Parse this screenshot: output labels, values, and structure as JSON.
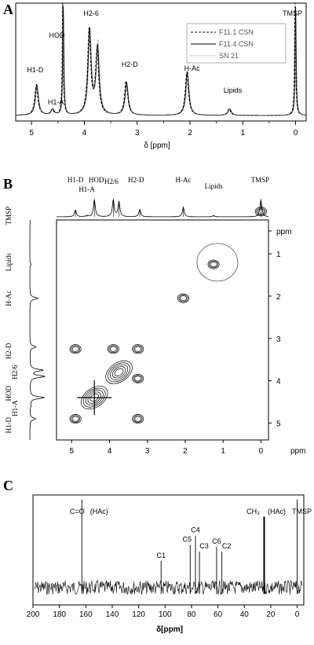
{
  "chart_data": [
    {
      "panel": "A",
      "type": "line",
      "xlabel": "δ [ppm]",
      "xlim": [
        5.3,
        -0.2
      ],
      "xticks": [
        "5",
        "4",
        "3",
        "2",
        "1",
        "0"
      ],
      "legend": {
        "placement": "top-right",
        "entries": [
          "F11.1 CSN",
          "F11.4 CSN",
          "SN 21"
        ]
      },
      "peaks": [
        {
          "label": "H1-D",
          "ppm": 4.9,
          "height": 0.28
        },
        {
          "label": "H1-A",
          "ppm": 4.6,
          "height": 0.05
        },
        {
          "label": "HOD",
          "ppm": 4.4,
          "height": 1.0
        },
        {
          "label": "H2-6",
          "ppm": 3.9,
          "height": 0.78
        },
        {
          "label": "",
          "ppm": 3.75,
          "height": 0.62
        },
        {
          "label": "H2-D",
          "ppm": 3.2,
          "height": 0.3
        },
        {
          "label": "H-Ac",
          "ppm": 2.05,
          "height": 0.4
        },
        {
          "label": "Lipids",
          "ppm": 1.25,
          "height": 0.06
        },
        {
          "label": "TMSP",
          "ppm": 0.0,
          "height": 1.0
        }
      ]
    },
    {
      "panel": "B",
      "type": "heatmap",
      "subtype": "2D NMR contour",
      "xlabel": "ppm",
      "ylabel": "ppm",
      "xlim": [
        5.4,
        -0.2
      ],
      "ylim": [
        0.2,
        5.4
      ],
      "xticks": [
        "5",
        "4",
        "3",
        "2",
        "1",
        "0"
      ],
      "yticks": [
        "ppm",
        "1",
        "2",
        "3",
        "4",
        "5"
      ],
      "top_labels": [
        "H1-D",
        "H1-A",
        "HOD",
        "H2/6",
        "H2-D",
        "H-Ac",
        "Lipids",
        "TMSP"
      ],
      "side_labels": [
        "TMSP",
        "Lipids",
        "H-Ac",
        "H2-D",
        "H2/6",
        "HOD",
        "H1-A",
        "H1-D"
      ],
      "cross_peaks": [
        {
          "x": 0.0,
          "y": 0.0
        },
        {
          "x": 1.25,
          "y": 1.25
        },
        {
          "x": 2.05,
          "y": 2.05
        },
        {
          "x": 4.9,
          "y": 3.25
        },
        {
          "x": 3.25,
          "y": 3.25
        },
        {
          "x": 3.9,
          "y": 3.25
        },
        {
          "x": 3.75,
          "y": 3.8
        },
        {
          "x": 3.25,
          "y": 3.95
        },
        {
          "x": 4.4,
          "y": 4.4
        },
        {
          "x": 4.9,
          "y": 4.9
        },
        {
          "x": 3.25,
          "y": 4.9
        }
      ]
    },
    {
      "panel": "C",
      "type": "line",
      "xlabel": "δ[ppm]",
      "xlim": [
        200,
        -5
      ],
      "xticks": [
        "200",
        "180",
        "160",
        "140",
        "120",
        "100",
        "80",
        "60",
        "40",
        "20",
        "0"
      ],
      "peaks": [
        {
          "label": "C=O",
          "note": "(HAc)",
          "ppm": 163,
          "height": 1.0
        },
        {
          "label": "C1",
          "ppm": 103,
          "height": 0.35
        },
        {
          "label": "C5",
          "ppm": 81,
          "height": 0.52
        },
        {
          "label": "C4",
          "ppm": 77,
          "height": 0.62
        },
        {
          "label": "C3",
          "ppm": 74,
          "height": 0.45
        },
        {
          "label": "C6",
          "ppm": 61,
          "height": 0.5
        },
        {
          "label": "C2",
          "ppm": 57,
          "height": 0.45
        },
        {
          "label": "CH₃",
          "note": "(HAc)",
          "ppm": 25,
          "height": 0.82
        },
        {
          "label": "TMSP",
          "ppm": 0,
          "height": 1.0
        }
      ]
    }
  ]
}
